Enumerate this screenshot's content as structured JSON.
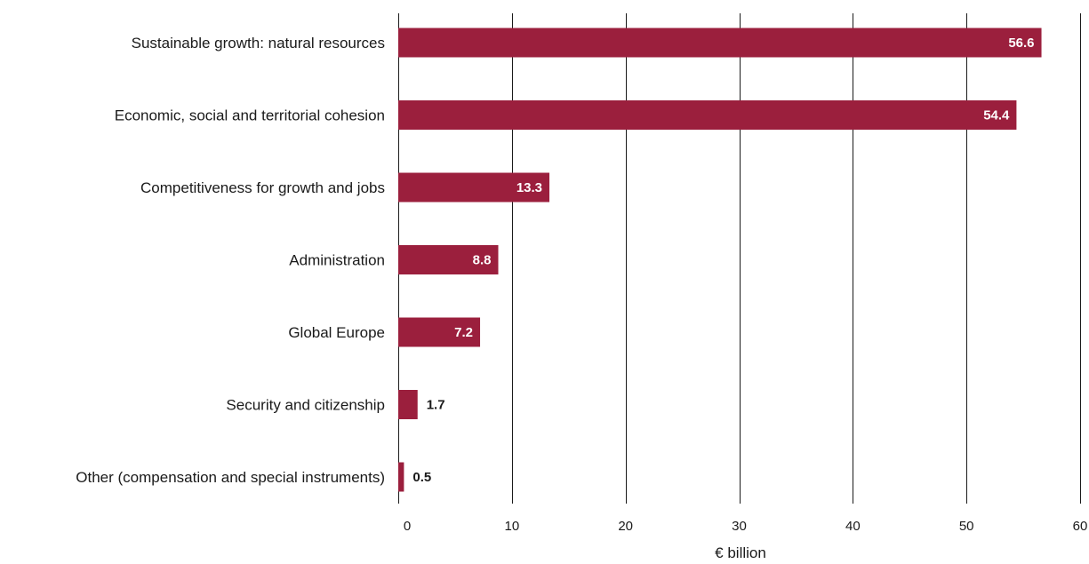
{
  "chart_data": {
    "type": "bar",
    "orientation": "horizontal",
    "categories": [
      "Sustainable growth: natural resources",
      "Economic, social and territorial cohesion",
      "Competitiveness for growth and jobs",
      "Administration",
      "Global Europe",
      "Security and citizenship",
      "Other (compensation and special instruments)"
    ],
    "values": [
      56.6,
      54.4,
      13.3,
      8.8,
      7.2,
      1.7,
      0.5
    ],
    "value_labels": [
      "56.6",
      "54.4",
      "13.3",
      "8.8",
      "7.2",
      "1.7",
      "0.5"
    ],
    "xlabel": "€ billion",
    "xlim": [
      0,
      60
    ],
    "xticks": [
      0,
      10,
      20,
      30,
      40,
      50,
      60
    ],
    "xtick_labels": [
      "0",
      "10",
      "20",
      "30",
      "40",
      "50",
      "60"
    ],
    "grid": true,
    "bar_color": "#9b1f3d"
  }
}
